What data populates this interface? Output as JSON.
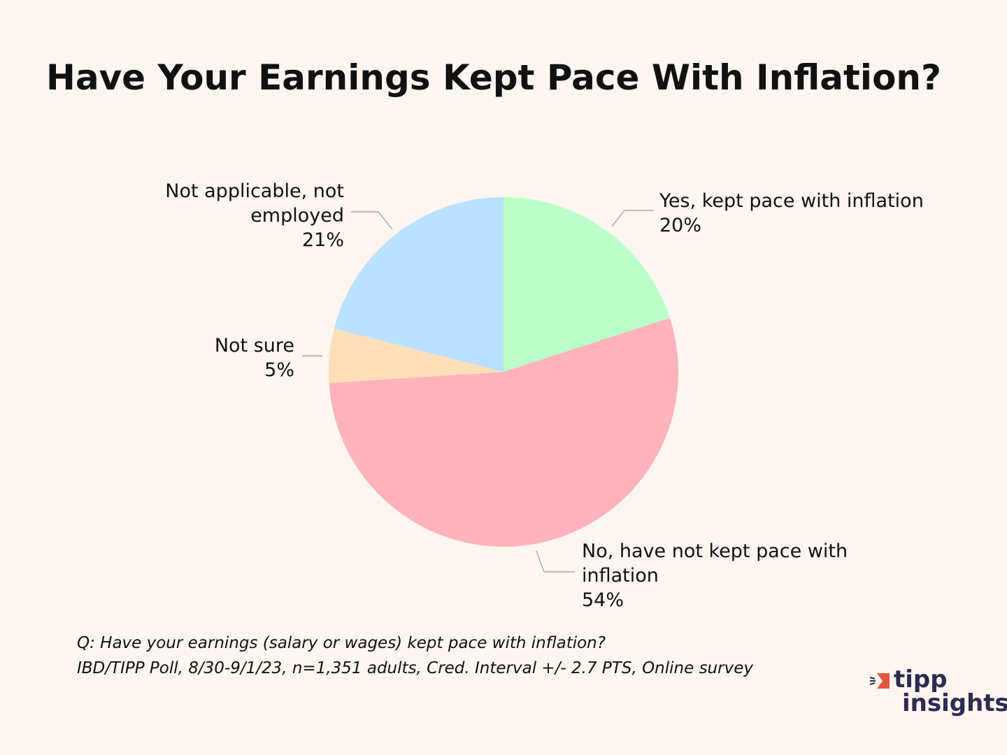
{
  "chart_data": {
    "type": "pie",
    "title": "Have Your Earnings Kept Pace With Inflation?",
    "categories": [
      "Yes, kept pace with inflation",
      "No, have not kept pace with inflation",
      "Not sure",
      "Not applicable, not employed"
    ],
    "values": [
      20,
      54,
      5,
      21
    ],
    "value_labels": [
      "20%",
      "54%",
      "5%",
      "21%"
    ],
    "colors": [
      "#baffc9",
      "#ffb3ba",
      "#ffdfba",
      "#bae1ff"
    ],
    "notes": [
      "Q: Have your earnings (salary or wages) kept pace with inflation?",
      "IBD/TIPP Poll, 8/30-9/1/23, n=1,351 adults, Cred. Interval +/- 2.7 PTS, Online survey"
    ]
  },
  "logo": {
    "line1": "tipp",
    "line2": "insights"
  }
}
